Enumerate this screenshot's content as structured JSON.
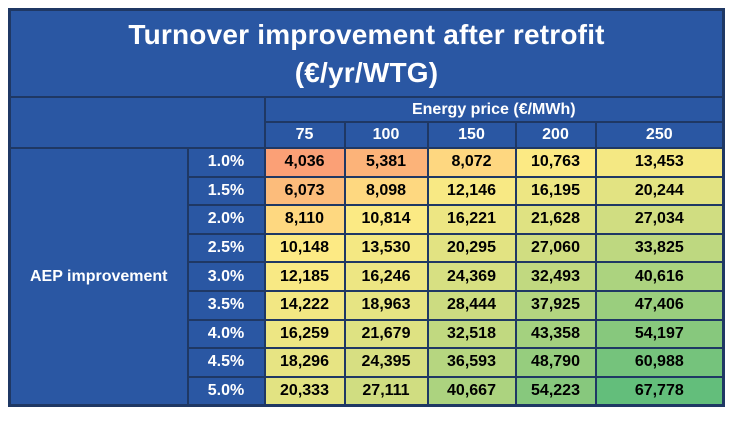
{
  "title": {
    "line1": "Turnover improvement after retrofit",
    "line2": "(€/yr/WTG)"
  },
  "header": {
    "column_group_label": "Energy price (€/MWh)",
    "row_group_label": "AEP improvement"
  },
  "chart_data": {
    "type": "heatmap",
    "title": "Turnover improvement after retrofit (€/yr/WTG)",
    "x_axis_label": "Energy price (€/MWh)",
    "y_axis_label": "AEP improvement",
    "x_categories": [
      "75",
      "100",
      "150",
      "200",
      "250"
    ],
    "y_categories": [
      "1.0%",
      "1.5%",
      "2.0%",
      "2.5%",
      "3.0%",
      "3.5%",
      "4.0%",
      "4.5%",
      "5.0%"
    ],
    "values": [
      [
        4036,
        5381,
        8072,
        10763,
        13453
      ],
      [
        6073,
        8098,
        12146,
        16195,
        20244
      ],
      [
        8110,
        10814,
        16221,
        21628,
        27034
      ],
      [
        10148,
        13530,
        20295,
        27060,
        33825
      ],
      [
        12185,
        16246,
        24369,
        32493,
        40616
      ],
      [
        14222,
        18963,
        28444,
        37925,
        47406
      ],
      [
        16259,
        21679,
        32518,
        43358,
        54197
      ],
      [
        18296,
        24395,
        36593,
        48790,
        60988
      ],
      [
        20333,
        27111,
        40667,
        54223,
        67778
      ]
    ],
    "value_format": "thousands-comma",
    "legend_position": "none",
    "grid": true,
    "colorscale": {
      "stops": [
        {
          "value": 0,
          "color": "#F8696B"
        },
        {
          "value": 9500,
          "color": "#FFEB84"
        },
        {
          "value": 67778,
          "color": "#63BE7B"
        }
      ]
    }
  },
  "colors": {
    "header_blue": "#2A57A3",
    "border_navy": "#1F3864",
    "title_text": "#FFFFFF",
    "cell_text": "#000000",
    "page_background": "#FFFFFF"
  }
}
